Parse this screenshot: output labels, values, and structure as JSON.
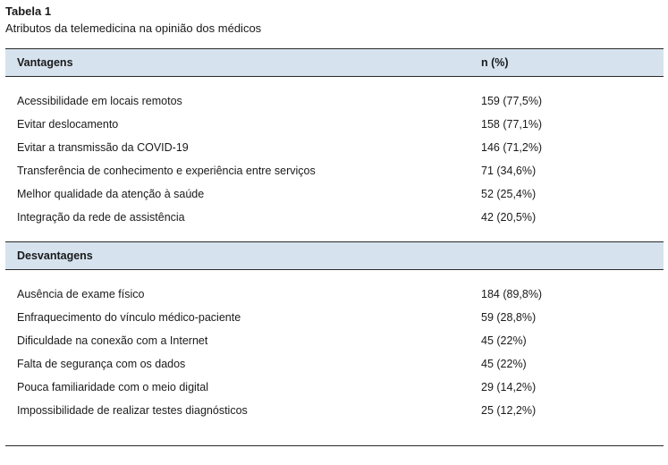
{
  "caption": {
    "label": "Tabela 1",
    "title": "Atributos da telemedicina na opinião dos médicos"
  },
  "table": {
    "header": {
      "col1": "Vantagens",
      "col2": "n (%)"
    },
    "vantagens": [
      {
        "attribute": "Acessibilidade em locais remotos",
        "value": "159 (77,5%)"
      },
      {
        "attribute": "Evitar deslocamento",
        "value": "158 (77,1%)"
      },
      {
        "attribute": "Evitar a transmissão da COVID-19",
        "value": "146 (71,2%)"
      },
      {
        "attribute": "Transferência de conhecimento e experiência entre serviços",
        "value": "71 (34,6%)"
      },
      {
        "attribute": "Melhor qualidade da atenção à saúde",
        "value": "52 (25,4%)"
      },
      {
        "attribute": "Integração da rede de assistência",
        "value": "42 (20,5%)"
      }
    ],
    "desvantagens_header": "Desvantagens",
    "desvantagens": [
      {
        "attribute": "Ausência de exame físico",
        "value": "184 (89,8%)"
      },
      {
        "attribute": "Enfraquecimento do vínculo médico-paciente",
        "value": "59 (28,8%)"
      },
      {
        "attribute": "Dificuldade na conexão com a Internet",
        "value": "45 (22%)"
      },
      {
        "attribute": "Falta de segurança com os dados",
        "value": "45 (22%)"
      },
      {
        "attribute": "Pouca familiaridade com o meio digital",
        "value": "29 (14,2%)"
      },
      {
        "attribute": "Impossibilidade de realizar testes diagnósticos",
        "value": "25 (12,2%)"
      }
    ]
  }
}
